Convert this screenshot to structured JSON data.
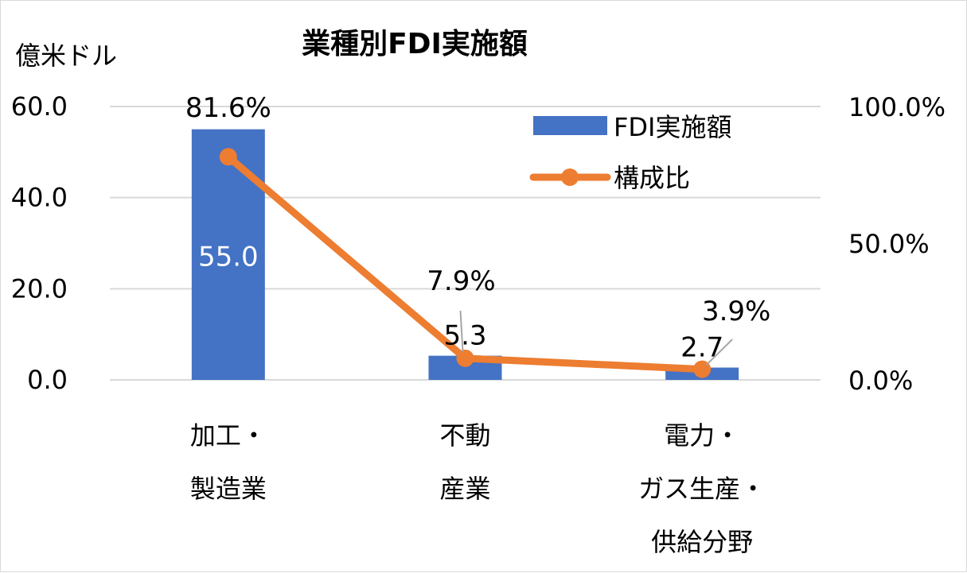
{
  "chart_data": {
    "type": "bar",
    "title": "業種別FDI実施額",
    "y_unit_label": "億米ドル",
    "categories": [
      [
        "加工・",
        "製造業"
      ],
      [
        "不動",
        "産業"
      ],
      [
        "電力・",
        "ガス生産・",
        "供給分野"
      ]
    ],
    "ylim": [
      0,
      60
    ],
    "y2lim": [
      0,
      100
    ],
    "y_ticks": [
      "0.0",
      "20.0",
      "40.0",
      "60.0"
    ],
    "y2_ticks": [
      "0.0%",
      "50.0%",
      "100.0%"
    ],
    "grid": true,
    "legend_position": "top-right",
    "series": [
      {
        "name": "FDI実施額",
        "kind": "bar",
        "axis": "left",
        "color": "#4472C4",
        "values": [
          55.0,
          5.3,
          2.7
        ],
        "labels": [
          "55.0",
          "5.3",
          "2.7"
        ]
      },
      {
        "name": "構成比",
        "kind": "line",
        "axis": "right",
        "color": "#ED7D31",
        "values": [
          81.6,
          7.9,
          3.9
        ],
        "labels": [
          "81.6%",
          "7.9%",
          "3.9%"
        ]
      }
    ]
  }
}
